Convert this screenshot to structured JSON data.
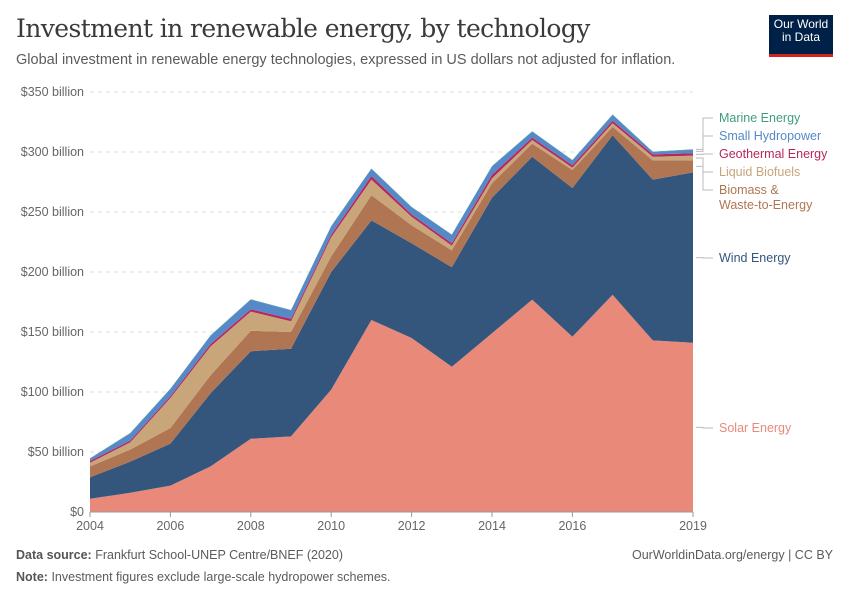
{
  "header": {
    "title": "Investment in renewable energy, by technology",
    "subtitle": "Global investment in renewable energy technologies, expressed in US dollars not adjusted for inflation.",
    "logo_line1": "Our World",
    "logo_line2": "in Data"
  },
  "footer": {
    "source_label": "Data source:",
    "source": "Frankfurt School-UNEP Centre/BNEF (2020)",
    "url": "OurWorldinData.org/energy | CC BY",
    "note_label": "Note:",
    "note": "Investment figures exclude large-scale hydropower schemes."
  },
  "chart_data": {
    "type": "area",
    "stacked": true,
    "title": "Investment in renewable energy, by technology",
    "xlabel": "",
    "ylabel": "",
    "x": [
      2004,
      2005,
      2006,
      2007,
      2008,
      2009,
      2010,
      2011,
      2012,
      2013,
      2014,
      2015,
      2016,
      2017,
      2018,
      2019
    ],
    "xlim": [
      2004,
      2019
    ],
    "ylim": [
      0,
      350
    ],
    "x_ticks": [
      "2004",
      "2006",
      "2008",
      "2010",
      "2012",
      "2014",
      "2016",
      "2019"
    ],
    "y_ticks": [
      "$0",
      "$50 billion",
      "$100 billion",
      "$150 billion",
      "$200 billion",
      "$250 billion",
      "$300 billion",
      "$350 billion"
    ],
    "y_tick_values": [
      0,
      50,
      100,
      150,
      200,
      250,
      300,
      350
    ],
    "unit": "billion US$",
    "grid": "horizontal dashed",
    "legend_placement": "right, inline labels",
    "series": [
      {
        "name": "Solar Energy",
        "color": "#e9897a",
        "values": [
          11,
          16,
          22,
          38,
          61,
          63,
          102,
          160,
          145,
          121,
          149,
          177,
          146,
          181,
          143,
          141
        ]
      },
      {
        "name": "Wind Energy",
        "color": "#34567d",
        "values": [
          18,
          26,
          35,
          61,
          73,
          73,
          98,
          83,
          79,
          83,
          113,
          119,
          124,
          133,
          134,
          142
        ]
      },
      {
        "name": "Biomass & Waste-to-Energy",
        "color": "#b07653",
        "values": [
          9,
          10,
          13,
          15,
          17,
          14,
          13,
          21,
          15,
          14,
          12,
          11,
          15,
          7,
          16,
          10
        ]
      },
      {
        "name": "Liquid Biofuels",
        "color": "#c9a57a",
        "values": [
          3,
          6,
          25,
          24,
          16,
          9,
          16,
          13,
          7,
          4,
          4,
          3,
          2,
          3,
          3,
          4
        ]
      },
      {
        "name": "Geothermal Energy",
        "color": "#b7275e",
        "values": [
          1.5,
          1.5,
          1.5,
          2,
          2,
          2,
          2,
          3,
          2,
          2,
          3,
          2,
          2,
          2,
          2,
          2
        ]
      },
      {
        "name": "Small Hydropower",
        "color": "#5689c8",
        "values": [
          2,
          6,
          6,
          7,
          8,
          7,
          7,
          6,
          6,
          7,
          7,
          5,
          4,
          5,
          2,
          3
        ]
      },
      {
        "name": "Marine Energy",
        "color": "#3f9d7e",
        "values": [
          0.3,
          0.3,
          0.3,
          0.3,
          0.3,
          0.3,
          0.3,
          0.3,
          0.3,
          0.3,
          0.3,
          0.3,
          0.3,
          0.3,
          0.3,
          0.3
        ]
      }
    ]
  }
}
